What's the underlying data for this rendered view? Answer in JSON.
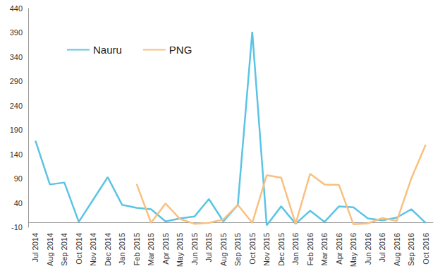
{
  "chart_data": {
    "type": "line",
    "categories": [
      "Jul 2014",
      "Aug 2014",
      "Sep 2014",
      "Oct 2014",
      "Nov 2014",
      "Dec 2014",
      "Jan 2015",
      "Feb 2015",
      "Mar 2015",
      "Apr 2015",
      "May 2015",
      "Jun 2015",
      "Jul 2015",
      "Aug 2015",
      "Sep 2015",
      "Oct 2015",
      "Nov 2015",
      "Dec 2015",
      "Jan 2016",
      "Feb 2016",
      "Mar 2016",
      "Apr 2016",
      "May 2016",
      "Jun 2016",
      "Jul 2016",
      "Aug 2016",
      "Sep 2016",
      "Oct 2016"
    ],
    "series": [
      {
        "name": "Nauru",
        "color": "#5bc4e5",
        "values": [
          168,
          78,
          82,
          1,
          47,
          93,
          36,
          30,
          27,
          2,
          8,
          12,
          48,
          2,
          36,
          392,
          -6,
          33,
          -3,
          24,
          1,
          33,
          31,
          8,
          4,
          10,
          27,
          -1
        ]
      },
      {
        "name": "PNG",
        "color": "#f9c080",
        "values": [
          null,
          null,
          null,
          null,
          null,
          null,
          null,
          79,
          -1,
          39,
          7,
          -3,
          -1,
          6,
          36,
          -1,
          97,
          92,
          -3,
          100,
          78,
          77,
          -4,
          -2,
          9,
          3,
          90,
          160
        ]
      }
    ],
    "ylim": [
      -10,
      440
    ],
    "yticks": [
      -10,
      40,
      90,
      140,
      190,
      240,
      290,
      340,
      390,
      440
    ],
    "grid": false,
    "legend": "upper left"
  }
}
